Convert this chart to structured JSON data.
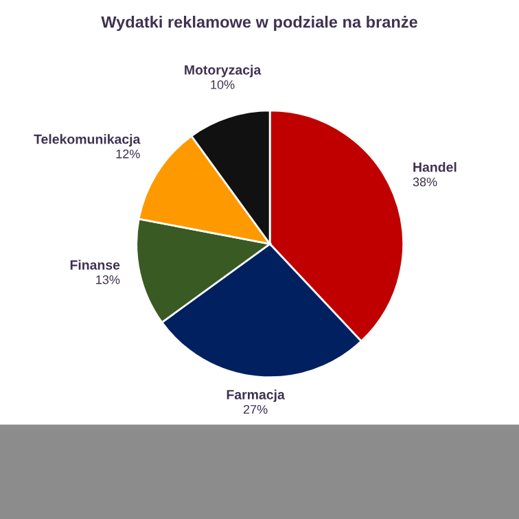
{
  "chart_data": {
    "type": "pie",
    "title": "Wydatki reklamowe w podziale na branże",
    "categories": [
      "Handel",
      "Farmacja",
      "Finanse",
      "Telekomunikacja",
      "Motoryzacja"
    ],
    "values": [
      38,
      27,
      13,
      12,
      10
    ],
    "colors": [
      "#c00000",
      "#002060",
      "#3a5a24",
      "#ff9900",
      "#111111"
    ],
    "value_labels": [
      "38%",
      "27%",
      "13%",
      "12%",
      "10%"
    ]
  }
}
